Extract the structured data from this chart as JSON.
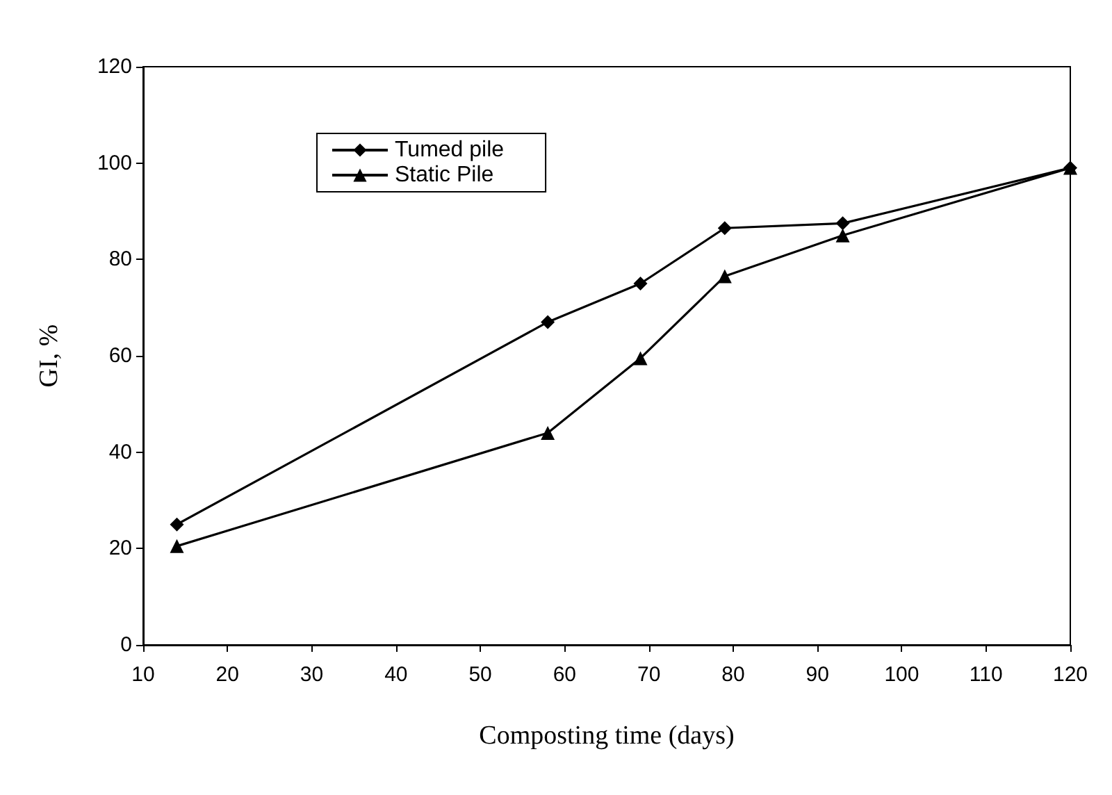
{
  "chart_data": {
    "type": "line",
    "xlabel": "Composting time (days)",
    "ylabel": "GI, %",
    "xlim": [
      10,
      120
    ],
    "xticks": [
      10,
      20,
      30,
      40,
      50,
      60,
      70,
      80,
      90,
      100,
      110,
      120
    ],
    "ylim": [
      0,
      120
    ],
    "yticks": [
      0,
      20,
      40,
      60,
      80,
      100,
      120
    ],
    "grid": false,
    "legend": "top left",
    "series": [
      {
        "name": "Tumed pile",
        "color": "#000000",
        "marker": "diamond",
        "x": [
          14,
          58,
          69,
          79,
          93,
          120
        ],
        "values": [
          25,
          67,
          75,
          86.5,
          87.5,
          99
        ]
      },
      {
        "name": "Static Pile",
        "color": "#000000",
        "marker": "triangle",
        "x": [
          14,
          58,
          69,
          79,
          93,
          120
        ],
        "values": [
          20.5,
          44,
          59.5,
          76.5,
          85,
          99
        ]
      }
    ]
  }
}
